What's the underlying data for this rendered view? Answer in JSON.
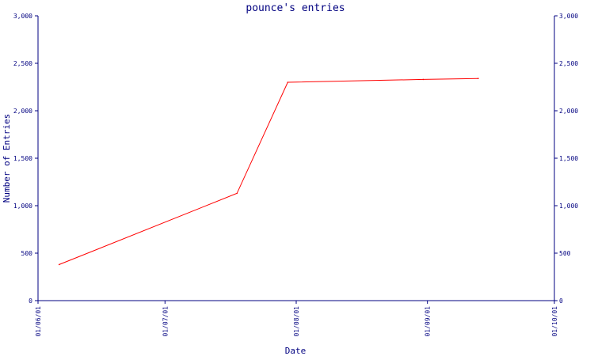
{
  "chart_data": {
    "type": "line",
    "title": "pounce's entries",
    "xlabel": "Date",
    "ylabel": "Number of Entries",
    "x_tick_labels": [
      "01/06/01",
      "01/07/01",
      "01/08/01",
      "01/09/01",
      "01/10/01"
    ],
    "y_tick_labels": [
      "0",
      "500",
      "1,000",
      "1,500",
      "2,000",
      "2,500",
      "3,000"
    ],
    "y_ticks": [
      0,
      500,
      1000,
      1500,
      2000,
      2500,
      3000
    ],
    "ylim": [
      0,
      3000
    ],
    "xlim": [
      "2001-06-01",
      "2001-10-01"
    ],
    "grid": false,
    "series": [
      {
        "color": "#ff0000",
        "x": [
          "2001-06-06",
          "2001-07-18",
          "2001-07-30",
          "2001-08-31",
          "2001-09-13"
        ],
        "values": [
          380,
          1130,
          2300,
          2330,
          2340
        ]
      }
    ],
    "colors": {
      "axis": "#000080",
      "text": "#000080",
      "line": "#ff0000"
    }
  }
}
